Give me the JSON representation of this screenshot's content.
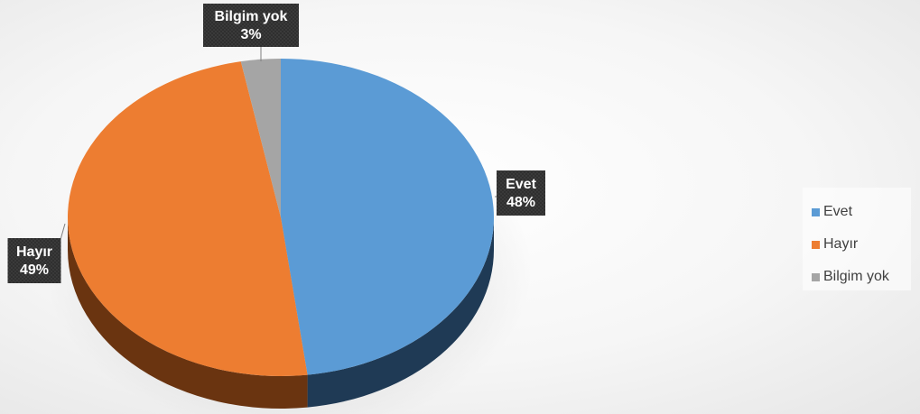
{
  "chart_data": {
    "type": "pie",
    "title": "",
    "categories": [
      "Evet",
      "Hayır",
      "Bilgim yok"
    ],
    "values": [
      48,
      49,
      3
    ],
    "labels": [
      "Evet\n48%",
      "Hayır\n49%",
      "Bilgim yok\n3%"
    ],
    "colors": [
      "#5B9BD5",
      "#ED7D31",
      "#A5A5A5"
    ],
    "side_colors": [
      "#1F3A55",
      "#6A3410",
      "#555555"
    ],
    "legend_position": "right",
    "style": "3d"
  },
  "legend": {
    "items": [
      {
        "label": "Evet",
        "color": "#5B9BD5"
      },
      {
        "label": "Hayır",
        "color": "#ED7D31"
      },
      {
        "label": "Bilgim yok",
        "color": "#A5A5A5"
      }
    ]
  }
}
